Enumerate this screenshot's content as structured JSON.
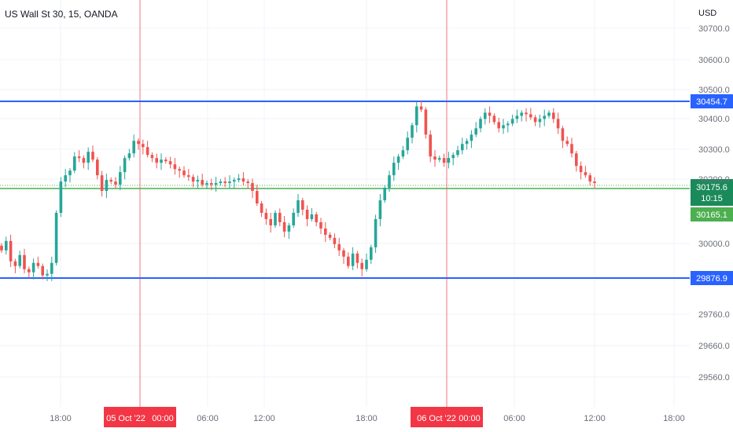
{
  "header": {
    "title": "US Wall St 30, 15, OANDA",
    "currency": "USD"
  },
  "colors": {
    "up": "#26a69a",
    "down": "#ef5350",
    "hline": "#2962ff",
    "green": "#4caf50",
    "grid": "#f0f3fa",
    "vline": "#f23645"
  },
  "chart_data": {
    "type": "candlestick",
    "title": "US Wall St 30, 15, OANDA",
    "ylabel": "USD",
    "ylim": [
      29460,
      30760
    ],
    "y_ticks": [
      "30700.0",
      "30600.0",
      "30500.0",
      "30400.0",
      "30300.0",
      "30200.0",
      "30000.0",
      "29760.0",
      "29660.0",
      "29560.0"
    ],
    "x_ticks": [
      "18:00",
      "05 Oct '22",
      "00:00",
      "06:00",
      "12:00",
      "18:00",
      "06 Oct '22",
      "00:00",
      "06:00",
      "12:00",
      "18:00"
    ],
    "horizontal_levels": [
      {
        "price": 30454.7,
        "label": "30454.7"
      },
      {
        "price": 29876.9,
        "label": "29876.9"
      }
    ],
    "current_price": {
      "price": 30175.6,
      "label": "30175.6",
      "countdown": "10:15"
    },
    "low_marker": {
      "price": 30165.1,
      "label": "30165.1"
    },
    "vertical_markers": [
      "05 Oct '22 00:00",
      "06 Oct '22 00:00"
    ],
    "candles_close_path": [
      29960,
      29990,
      29925,
      29910,
      29945,
      29900,
      29890,
      29920,
      29910,
      29880,
      29885,
      29920,
      30080,
      30180,
      30200,
      30215,
      30260,
      30255,
      30240,
      30275,
      30250,
      30200,
      30150,
      30185,
      30180,
      30170,
      30210,
      30255,
      30270,
      30310,
      30300,
      30290,
      30265,
      30255,
      30240,
      30250,
      30245,
      30235,
      30220,
      30215,
      30200,
      30195,
      30180,
      30185,
      30170,
      30175,
      30170,
      30175,
      30180,
      30175,
      30180,
      30185,
      30190,
      30180,
      30175,
      30150,
      30110,
      30080,
      30060,
      30040,
      30080,
      30050,
      30020,
      30040,
      30080,
      30120,
      30090,
      30060,
      30075,
      30050,
      30030,
      30010,
      30000,
      29980,
      29960,
      29940,
      29910,
      29950,
      29920,
      29900,
      29930,
      29970,
      30060,
      30120,
      30160,
      30200,
      30240,
      30260,
      30280,
      30320,
      30360,
      30420,
      30410,
      30330,
      30260,
      30250,
      30255,
      30240,
      30255,
      30265,
      30280,
      30300,
      30310,
      30330,
      30350,
      30380,
      30400,
      30390,
      30370,
      30350,
      30360,
      30365,
      30380,
      30390,
      30400,
      30395,
      30385,
      30370,
      30380,
      30390,
      30400,
      30380,
      30350,
      30310,
      30300,
      30270,
      30230,
      30210,
      30200,
      30180,
      30175
    ]
  }
}
